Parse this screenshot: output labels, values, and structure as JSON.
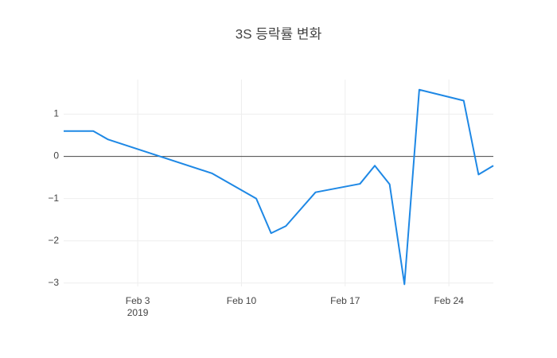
{
  "chart_data": {
    "type": "line",
    "title": "3S 등락률 변화",
    "x": [
      "2019-01-29",
      "2019-01-31",
      "2019-02-01",
      "2019-02-08",
      "2019-02-11",
      "2019-02-12",
      "2019-02-13",
      "2019-02-15",
      "2019-02-18",
      "2019-02-19",
      "2019-02-20",
      "2019-02-21",
      "2019-02-22",
      "2019-02-25",
      "2019-02-26",
      "2019-02-27"
    ],
    "series": [
      {
        "color": "#1e88e5",
        "values": [
          0.6,
          0.6,
          0.4,
          -0.4,
          -1.0,
          -1.82,
          -1.65,
          -0.85,
          -0.65,
          -0.22,
          -0.66,
          -3.03,
          1.58,
          1.32,
          -0.43,
          -0.22
        ]
      }
    ],
    "xlim": [
      "2019-01-29",
      "2019-02-27"
    ],
    "xticks": [
      {
        "value": "2019-02-03",
        "label": "Feb 3"
      },
      {
        "value": "2019-02-10",
        "label": "Feb 10"
      },
      {
        "value": "2019-02-17",
        "label": "Feb 17"
      },
      {
        "value": "2019-02-24",
        "label": "Feb 24"
      }
    ],
    "xtick_year": "2019",
    "ylim": [
      -3.08,
      1.82
    ],
    "yticks": [
      {
        "value": -3,
        "label": "−3"
      },
      {
        "value": -2,
        "label": "−2"
      },
      {
        "value": -1,
        "label": "−1"
      },
      0,
      1
    ],
    "grid": true
  }
}
